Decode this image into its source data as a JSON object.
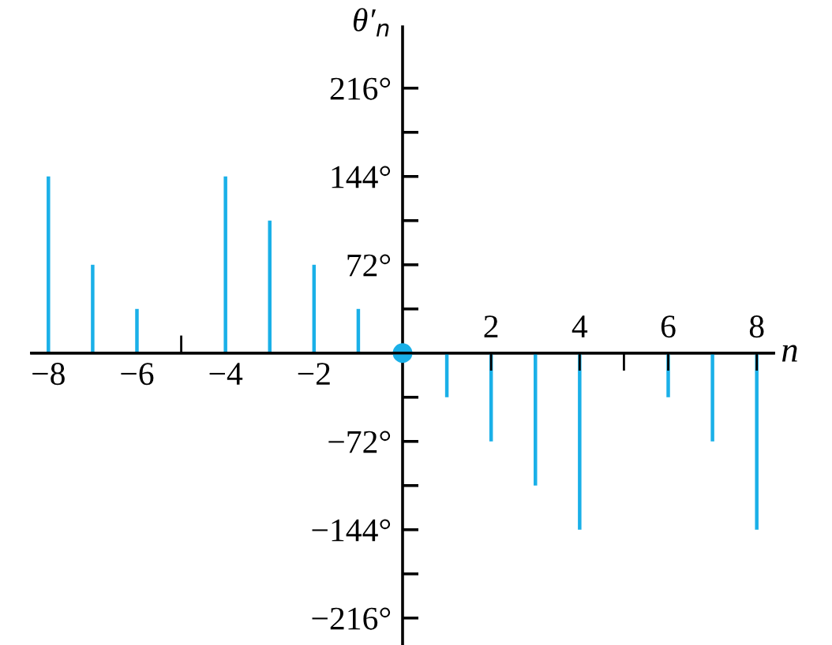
{
  "chart_data": {
    "type": "bar",
    "xlabel": "n",
    "ylabel": "θ′$_{n}$",
    "x": [
      -8,
      -7,
      -6,
      -5,
      -4,
      -3,
      -2,
      -1,
      0,
      1,
      2,
      3,
      4,
      5,
      6,
      7,
      8
    ],
    "series": [
      {
        "color": "#1ab0e8",
        "values": [
          144,
          72,
          36,
          null,
          144,
          108,
          72,
          36,
          null,
          -36,
          -72,
          -108,
          -144,
          null,
          -36,
          -72,
          -144
        ]
      },
      {
        "type": "scatter",
        "color": "#1ab0e8",
        "marker": "circle",
        "x": [
          0
        ],
        "values": [
          0
        ]
      }
    ],
    "xlim": [
      -8.38,
      8.38
    ],
    "ylim": [
      -238,
      266
    ],
    "xticks": [
      {
        "value": -8,
        "label": "−8"
      },
      {
        "value": -6,
        "label": "−6"
      },
      {
        "value": -5,
        "label": null
      },
      {
        "value": -4,
        "label": "−4"
      },
      {
        "value": -2,
        "label": "−2"
      }
    ],
    "x2lim": [
      -8.38,
      8.38
    ],
    "x2ticks": [
      2,
      4,
      {
        "value": 5,
        "label": null
      },
      6,
      8
    ],
    "yticks": [
      {
        "value": -216,
        "label": "−216°"
      },
      {
        "value": -180,
        "label": null
      },
      {
        "value": -144,
        "label": "−144°"
      },
      {
        "value": -108,
        "label": null
      },
      {
        "value": -72,
        "label": "−72°"
      },
      {
        "value": -36,
        "label": null
      },
      {
        "value": 36,
        "label": null
      },
      {
        "value": 72,
        "label": "72°"
      },
      {
        "value": 108,
        "label": null
      },
      {
        "value": 144,
        "label": "144°"
      },
      {
        "value": 180,
        "label": null
      },
      {
        "value": 216,
        "label": "216°"
      }
    ],
    "grid": false,
    "legend": false
  }
}
